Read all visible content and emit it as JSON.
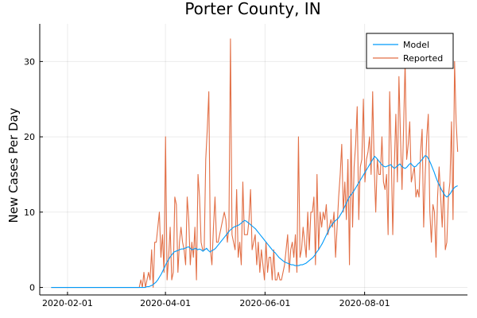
{
  "chart_data": {
    "type": "line",
    "title": "Porter County, IN",
    "xlabel": "",
    "ylabel": "New Cases Per Day",
    "x_start": "2020-01-22",
    "x_end": "2020-09-27",
    "xlim": [
      "2020-01-15",
      "2020-10-03"
    ],
    "ylim": [
      -1,
      35
    ],
    "x_ticks": [
      "2020-02-01",
      "2020-04-01",
      "2020-06-01",
      "2020-08-01"
    ],
    "y_ticks": [
      0,
      10,
      20,
      30
    ],
    "grid": true,
    "legend_position": "top-right",
    "series": [
      {
        "name": "Model",
        "color": "#009af9",
        "values": [
          0,
          0,
          0,
          0,
          0,
          0,
          0,
          0,
          0,
          0,
          0,
          0,
          0,
          0,
          0,
          0,
          0,
          0,
          0,
          0,
          0,
          0,
          0,
          0,
          0,
          0,
          0,
          0,
          0,
          0,
          0,
          0,
          0,
          0,
          0,
          0,
          0,
          0,
          0,
          0,
          0,
          0,
          0,
          0,
          0,
          0,
          0,
          0,
          0,
          0,
          0,
          0,
          0,
          0.1,
          0.1,
          0.2,
          0.3,
          0.5,
          0.7,
          1,
          1.4,
          1.8,
          2.3,
          2.8,
          3.3,
          3.7,
          4.1,
          4.4,
          4.7,
          4.8,
          4.9,
          5,
          5.1,
          5.1,
          5.2,
          5.3,
          5.4,
          5.2,
          5,
          5.1,
          5.2,
          5,
          5.1,
          5,
          4.8,
          5,
          5.2,
          4.9,
          4.7,
          4.9,
          5,
          5.2,
          5.5,
          5.8,
          6.1,
          6.4,
          6.7,
          7,
          7.3,
          7.6,
          7.8,
          8,
          8.1,
          8.2,
          8.3,
          8.5,
          8.7,
          8.9,
          8.8,
          8.6,
          8.4,
          8.2,
          8,
          7.8,
          7.5,
          7.2,
          6.9,
          6.6,
          6.3,
          6,
          5.7,
          5.4,
          5.1,
          4.8,
          4.6,
          4.3,
          4,
          3.8,
          3.6,
          3.4,
          3.3,
          3.2,
          3.1,
          3,
          3,
          2.9,
          2.9,
          2.9,
          3,
          3,
          3.1,
          3.2,
          3.4,
          3.6,
          3.8,
          4,
          4.3,
          4.7,
          5,
          5.4,
          5.8,
          6.3,
          6.8,
          7.3,
          7.8,
          8.2,
          8.5,
          8.8,
          9,
          9.2,
          9.6,
          10,
          10.5,
          11,
          11.5,
          12,
          12.3,
          12.6,
          13,
          13.4,
          13.8,
          14.2,
          14.6,
          15,
          15.4,
          15.8,
          16.2,
          16.6,
          17,
          17.4,
          17.2,
          16.9,
          16.6,
          16.3,
          16.1,
          16,
          16.1,
          16.2,
          16.3,
          16,
          15.8,
          16,
          16.2,
          16.4,
          16.1,
          15.9,
          15.8,
          16,
          16.3,
          16.5,
          16.2,
          16,
          16.1,
          16.4,
          16.6,
          16.9,
          17.2,
          17.5,
          17.4,
          17,
          16.5,
          15.9,
          15.3,
          14.6,
          14,
          13.5,
          13,
          12.6,
          12.2,
          12,
          12.2,
          12.5,
          12.9,
          13.2,
          13.4,
          13.5
        ]
      },
      {
        "name": "Reported",
        "color": "#e26f46",
        "values": [
          0,
          0,
          0,
          0,
          0,
          0,
          0,
          0,
          0,
          0,
          0,
          0,
          0,
          0,
          0,
          0,
          0,
          0,
          0,
          0,
          0,
          0,
          0,
          0,
          0,
          0,
          0,
          0,
          0,
          0,
          0,
          0,
          0,
          0,
          0,
          0,
          0,
          0,
          0,
          0,
          0,
          0,
          0,
          0,
          0,
          0,
          0,
          0,
          0,
          0,
          0,
          0,
          0,
          0,
          0,
          0,
          0,
          0,
          1,
          0,
          2,
          0,
          1,
          2,
          1,
          5,
          0,
          6,
          6,
          8,
          10,
          4,
          7,
          2,
          20,
          1,
          4,
          8,
          1,
          2,
          12,
          11,
          2,
          6,
          8,
          6,
          5,
          3,
          12,
          9,
          3,
          6,
          4,
          8,
          1,
          15,
          12,
          6,
          5,
          5,
          17,
          21,
          26,
          5,
          3,
          8,
          12,
          6,
          6,
          7,
          8,
          9,
          10,
          9,
          6,
          8,
          33,
          7,
          6,
          5,
          13,
          4,
          6,
          3,
          14,
          7,
          7,
          7,
          9,
          13,
          5,
          6,
          7,
          3,
          6,
          2,
          5,
          3,
          1,
          6,
          2,
          4,
          4,
          1,
          5,
          1,
          1,
          2,
          1,
          1,
          2,
          3,
          5,
          7,
          2,
          5,
          6,
          4,
          7,
          2,
          20,
          4,
          5,
          8,
          6,
          4,
          10,
          5,
          10,
          10,
          12,
          3,
          15,
          5,
          10,
          8,
          10,
          9,
          11,
          7,
          8,
          9,
          8,
          10,
          4,
          8,
          12,
          15,
          19,
          10,
          14,
          9,
          17,
          3,
          21,
          8,
          16,
          19,
          24,
          9,
          16,
          17,
          25,
          14,
          17,
          18,
          20,
          15,
          26,
          16,
          10,
          17,
          15,
          15,
          20,
          14,
          13,
          15,
          7,
          26,
          18,
          7,
          16,
          23,
          14,
          28,
          20,
          13,
          21,
          30,
          17,
          19,
          22,
          14,
          15,
          16,
          12,
          13,
          12,
          18,
          21,
          8,
          15,
          20,
          23,
          10,
          6,
          11,
          10,
          4,
          12,
          16,
          12,
          8,
          14,
          5,
          6,
          12,
          14,
          22,
          9,
          30,
          22,
          18
        ]
      }
    ]
  }
}
